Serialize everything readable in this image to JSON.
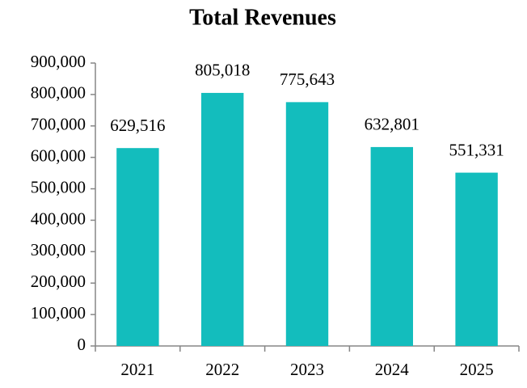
{
  "chart_data": {
    "type": "bar",
    "title": "Total Revenues",
    "categories": [
      "2021",
      "2022",
      "2023",
      "2024",
      "2025"
    ],
    "values": [
      629516,
      805018,
      775643,
      632801,
      551331
    ],
    "value_labels": [
      "629,516",
      "805,018",
      "775,643",
      "632,801",
      "551,331"
    ],
    "color": "#13bdbd",
    "ylim": [
      0,
      900000
    ],
    "yticks": [
      0,
      {
        "value": 100000,
        "label": "100,000"
      },
      {
        "value": 200000,
        "label": "200,000"
      },
      {
        "value": 300000,
        "label": "300,000"
      },
      {
        "value": 400000,
        "label": "400,000"
      },
      {
        "value": 500000,
        "label": "500,000"
      },
      {
        "value": 600000,
        "label": "600,000"
      },
      {
        "value": 700000,
        "label": "700,000"
      },
      {
        "value": 800000,
        "label": "800,000"
      },
      {
        "value": 900000,
        "label": "900,000"
      }
    ],
    "grid": false
  }
}
